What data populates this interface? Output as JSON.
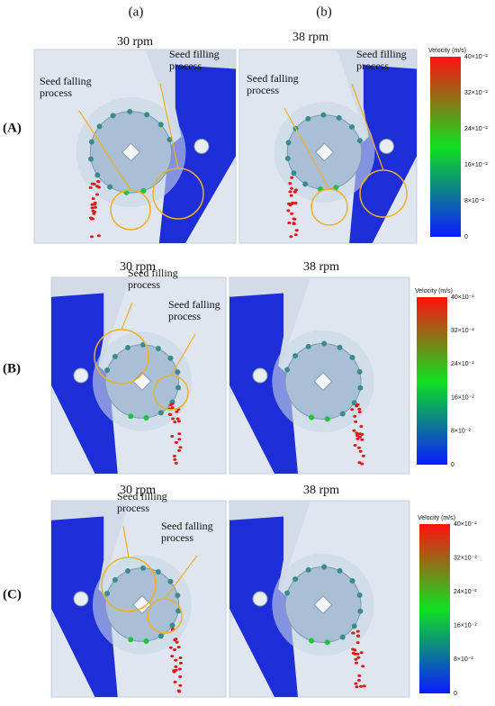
{
  "columns": [
    "(a)",
    "(b)"
  ],
  "rows": [
    {
      "label": "(A)",
      "panels": [
        {
          "speed": "30 rpm",
          "annotations": [
            [
              "Seed filling",
              "process"
            ],
            [
              "Seed falling",
              "process"
            ]
          ]
        },
        {
          "speed": "38 rpm",
          "annotations": [
            [
              "Seed filling",
              "process"
            ],
            [
              "Seed falling",
              "process"
            ]
          ]
        }
      ]
    },
    {
      "label": "(B)",
      "panels": [
        {
          "speed": "30 rpm",
          "annotations": [
            [
              "Seed filling",
              "process"
            ],
            [
              "Seed falling",
              "process"
            ]
          ]
        },
        {
          "speed": "38 rpm",
          "annotations": []
        }
      ]
    },
    {
      "label": "(C)",
      "panels": [
        {
          "speed": "30 rpm",
          "annotations": [
            [
              "Seed filling",
              "process"
            ],
            [
              "Seed falling",
              "process"
            ]
          ]
        },
        {
          "speed": "38 rpm",
          "annotations": []
        }
      ]
    }
  ],
  "colorbar": {
    "title": "Velocity (m/s)",
    "ticks": [
      "40×10⁻²",
      "32×10⁻²",
      "24×10⁻²",
      "16×10⁻²",
      "8×10⁻²",
      "0"
    ]
  }
}
